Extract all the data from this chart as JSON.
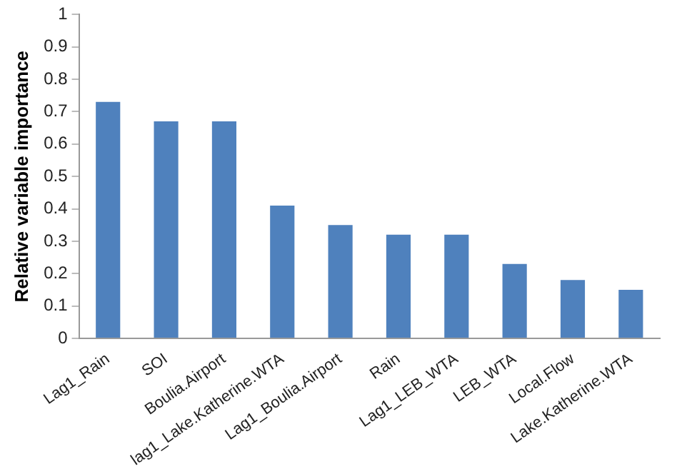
{
  "chart_data": {
    "type": "bar",
    "ylabel": "Relative variable importance",
    "categories": [
      "Lag1_Rain",
      "SOI",
      "Boulia.Airport",
      "lag1_Lake.Katherine.WTA",
      "Lag1_Boulia.Airport",
      "Rain",
      "Lag1_LEB_WTA",
      "LEB_WTA",
      "Local.Flow",
      "Lake.Katherine.WTA"
    ],
    "values": [
      0.73,
      0.67,
      0.67,
      0.41,
      0.35,
      0.32,
      0.32,
      0.23,
      0.18,
      0.15
    ],
    "color": "#4f81bd",
    "ylim": [
      0,
      1
    ],
    "yticks": [
      0,
      0.1,
      0.2,
      0.3,
      0.4,
      0.5,
      0.6,
      0.7,
      0.8,
      0.9,
      1
    ],
    "grid": false,
    "legend": false
  }
}
